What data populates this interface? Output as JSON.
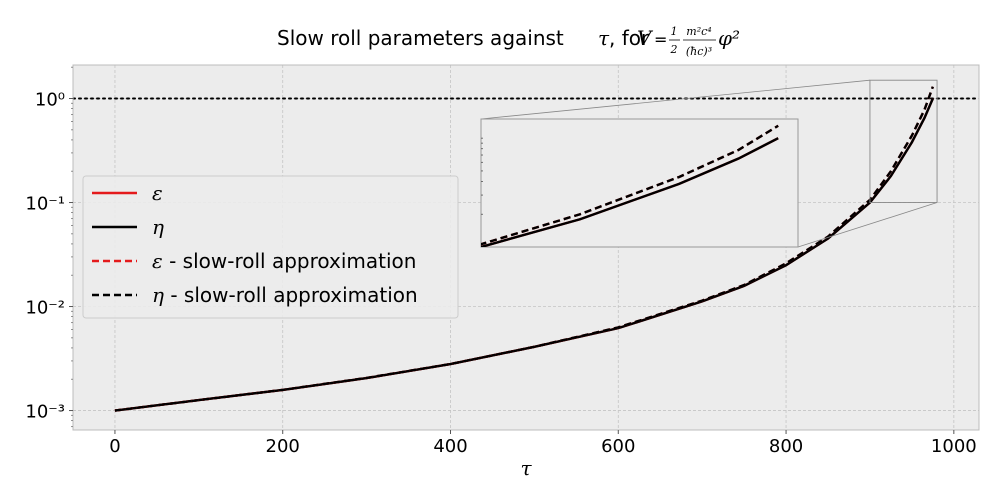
{
  "chart_data": {
    "type": "line",
    "title": "Slow roll parameters against τ, for V=(1/2)(m²c⁴/(ħc)³)φ²",
    "title_parts": {
      "prefix": "Slow roll parameters against ",
      "tau": "τ",
      "mid": ", for ",
      "V": "V",
      "eq": "=",
      "frac1_num": "1",
      "frac1_den": "2",
      "frac2_num": "m²c⁴",
      "frac2_den": "(ħc)³",
      "phi": "φ²"
    },
    "xlabel": "τ",
    "ylabel": "",
    "xscale": "linear",
    "yscale": "log",
    "xlim": [
      -50,
      1030
    ],
    "ylim": [
      0.00065,
      2.1
    ],
    "xticks": [
      0,
      200,
      400,
      600,
      800,
      1000
    ],
    "xtick_labels": [
      "0",
      "200",
      "400",
      "600",
      "800",
      "1000"
    ],
    "yticks": [
      0.001,
      0.01,
      0.1,
      1
    ],
    "ytick_labels": [
      "10⁻³",
      "10⁻²",
      "10⁻¹",
      "10⁰"
    ],
    "grid": true,
    "legend_position": "center-left",
    "reference_line": {
      "y": 1,
      "style": "dotted"
    },
    "x": [
      0,
      100,
      200,
      300,
      400,
      500,
      600,
      700,
      750,
      800,
      850,
      900,
      925,
      950,
      965,
      975
    ],
    "series": [
      {
        "name": "ε",
        "color": "#e41a1c",
        "dash": "solid",
        "values": [
          0.001,
          0.00126,
          0.00158,
          0.00205,
          0.0028,
          0.0041,
          0.0062,
          0.0112,
          0.0158,
          0.025,
          0.045,
          0.1,
          0.18,
          0.38,
          0.65,
          1.0
        ]
      },
      {
        "name": "η",
        "color": "#000000",
        "dash": "solid",
        "values": [
          0.001,
          0.00126,
          0.00158,
          0.00205,
          0.0028,
          0.0041,
          0.0062,
          0.0112,
          0.0158,
          0.025,
          0.045,
          0.1,
          0.18,
          0.38,
          0.65,
          1.0
        ]
      },
      {
        "name": "ε - slow-roll approximation",
        "color": "#e41a1c",
        "dash": "dashed",
        "values": [
          0.001,
          0.00126,
          0.00158,
          0.00206,
          0.0028,
          0.0041,
          0.0063,
          0.0114,
          0.0161,
          0.026,
          0.047,
          0.106,
          0.2,
          0.44,
          0.78,
          1.3
        ]
      },
      {
        "name": "η - slow-roll approximation",
        "color": "#000000",
        "dash": "dashed",
        "values": [
          0.001,
          0.00126,
          0.00158,
          0.00206,
          0.0028,
          0.0041,
          0.0063,
          0.0114,
          0.0161,
          0.026,
          0.047,
          0.106,
          0.2,
          0.44,
          0.78,
          1.3
        ]
      }
    ],
    "inset": {
      "xlim": [
        900,
        980
      ],
      "ylim": [
        0.1,
        1.5
      ],
      "yscale": "log",
      "source": "zoom of main plot near τ ≈ 900–980"
    }
  }
}
